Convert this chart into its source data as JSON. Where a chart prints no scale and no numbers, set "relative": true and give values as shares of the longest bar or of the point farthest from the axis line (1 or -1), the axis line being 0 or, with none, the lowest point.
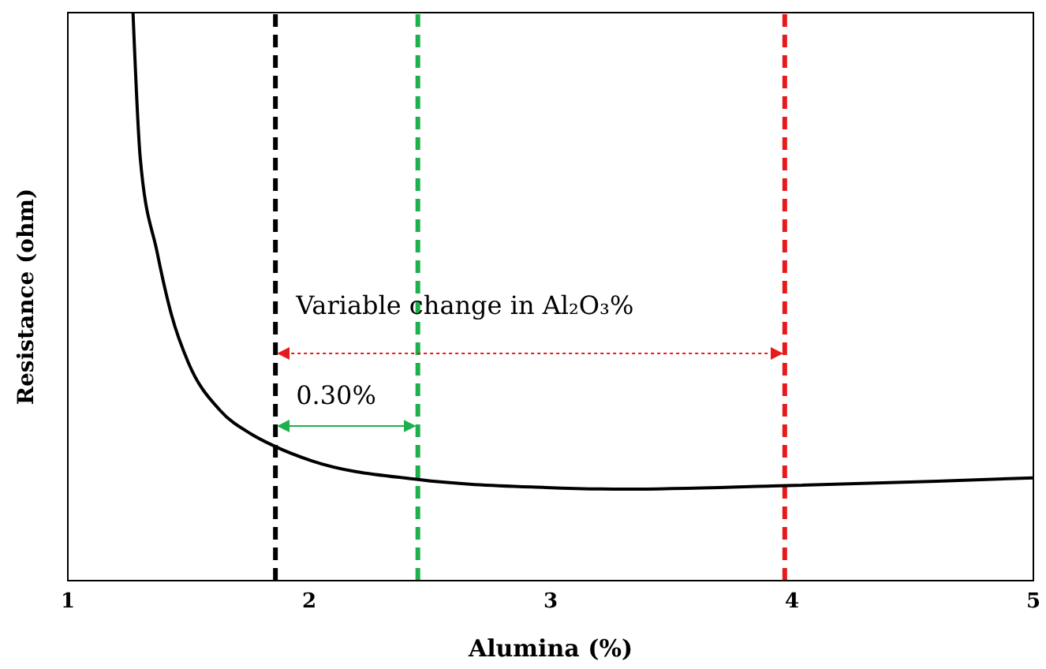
{
  "chart_data": {
    "type": "line",
    "relative": true,
    "xlabel": "Alumina (%)",
    "ylabel": "Resistance (ohm)",
    "xlim": [
      1,
      5
    ],
    "xticks": [
      1,
      2,
      3,
      4,
      5
    ],
    "marker": "none",
    "line_style": "solid",
    "x": [
      1.27,
      1.3,
      1.37,
      1.43,
      1.5,
      1.63,
      1.76,
      1.86,
      2.01,
      2.45,
      2.98,
      3.31,
      3.95,
      4.6,
      5.0
    ],
    "series": [
      {
        "color": "#000000",
        "values": [
          1.0,
          0.744,
          0.578,
          0.467,
          0.383,
          0.3,
          0.258,
          0.236,
          0.211,
          0.178,
          0.164,
          0.161,
          0.167,
          0.175,
          0.181
        ]
      }
    ],
    "ref_lines": [
      {
        "axis": "x",
        "value": 1.86,
        "color": "#000000",
        "line_style": "dashed"
      },
      {
        "axis": "x",
        "value": 2.45,
        "color": "#1db04c",
        "line_style": "dashed"
      },
      {
        "axis": "x",
        "value": 3.97,
        "color": "#e8191c",
        "line_style": "dashed"
      }
    ],
    "annotations": [
      "Variable change in Al₂O₃%",
      "0.30%"
    ]
  }
}
